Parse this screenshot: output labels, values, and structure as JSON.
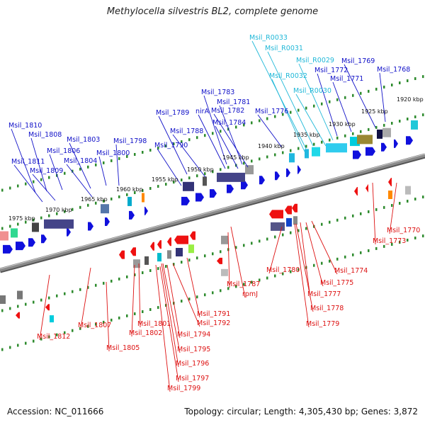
{
  "title": "Methylocella silvestris BL2, complete genome",
  "footer": {
    "accession": "Accession: NC_011666",
    "topology": "Topology: circular; Length: 4,305,430 bp; Genes: 3,872"
  },
  "colors": {
    "forward_label": "#1010c8",
    "rna_label": "#20b8d8",
    "reverse_label": "#dd1111",
    "backbone": "#8a8a8a",
    "dots": "#2e8b2e"
  },
  "scale": {
    "ticks": [
      "1975 kbp",
      "1970 kbp",
      "1965 kbp",
      "1960 kbp",
      "1955 kbp",
      "1950 kbp",
      "1945 kbp",
      "1940 kbp",
      "1935 kbp",
      "1930 kbp",
      "1925 kbp",
      "1920 kbp"
    ]
  },
  "labels": {
    "forward": [
      "Msil_1810",
      "Msil_1808",
      "Msil_1806",
      "Msil_1803",
      "Msil_1798",
      "Msil_1800",
      "Msil_1811",
      "Msil_1809",
      "Msil_1804",
      "Msil_1790",
      "Msil_1789",
      "Msil_1788",
      "nirA",
      "Msil_1784",
      "Msil_1783",
      "Msil_1781",
      "Msil_1782",
      "Msil_1776",
      "Msil_1772",
      "Msil_1771",
      "Msil_1769",
      "Msil_1768"
    ],
    "rna": [
      "Msil_R0033",
      "Msil_R0031",
      "Msil_R0029",
      "Msil_R0032",
      "Msil_R0030"
    ],
    "reverse": [
      "Msil_1812",
      "Msil_1807",
      "Msil_1805",
      "Msil_1801",
      "Msil_1802",
      "Msil_1791",
      "Msil_1792",
      "Msil_1794",
      "Msil_1795",
      "Msil_1796",
      "Msil_1797",
      "Msil_1799",
      "Msil_1787",
      "rpmJ",
      "Msil_1780",
      "Msil_1774",
      "Msil_1775",
      "Msil_1777",
      "Msil_1778",
      "Msil_1779",
      "Msil_1773",
      "Msil_1770"
    ]
  }
}
